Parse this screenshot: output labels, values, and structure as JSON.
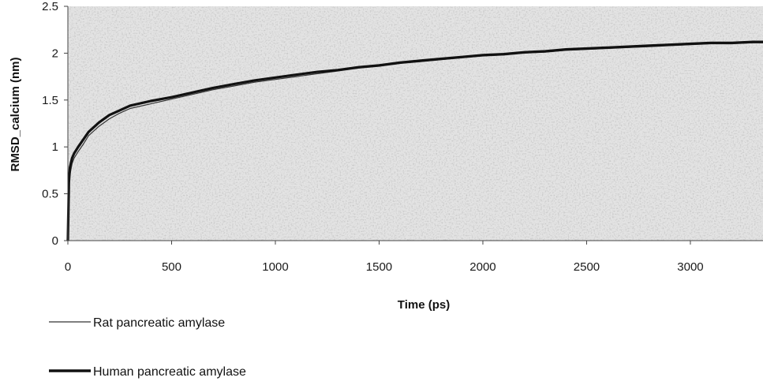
{
  "chart_data": {
    "type": "line",
    "title": "",
    "xlabel": "Time (ps)",
    "ylabel": "RMSD_calcium (nm)",
    "xlim": [
      0,
      3350
    ],
    "ylim": [
      0,
      2.5
    ],
    "x_ticks": [
      0,
      500,
      1000,
      1500,
      2000,
      2500,
      3000
    ],
    "y_ticks": [
      0,
      0.5,
      1,
      1.5,
      2,
      2.5
    ],
    "y_tick_labels": [
      "0",
      "0.5",
      "1",
      "1.5",
      "2",
      "2.5"
    ],
    "grid": false,
    "legend_position": "bottom-left",
    "series": [
      {
        "name": "Rat pancreatic amylase",
        "color": "#333333",
        "x": [
          0,
          5,
          10,
          20,
          30,
          50,
          75,
          100,
          150,
          200,
          250,
          300,
          400,
          500,
          600,
          700,
          800,
          900,
          1000,
          1100,
          1200,
          1300,
          1400,
          1500,
          1600,
          1700,
          1800,
          1900,
          2000,
          2100,
          2200,
          2300,
          2400,
          2500,
          2600,
          2700,
          2800,
          2900,
          3000,
          3100,
          3200,
          3300,
          3350
        ],
        "y": [
          0,
          0.55,
          0.7,
          0.82,
          0.88,
          0.95,
          1.03,
          1.12,
          1.22,
          1.3,
          1.36,
          1.41,
          1.46,
          1.51,
          1.56,
          1.61,
          1.65,
          1.69,
          1.72,
          1.75,
          1.78,
          1.81,
          1.84,
          1.86,
          1.89,
          1.91,
          1.93,
          1.95,
          1.97,
          1.98,
          2.0,
          2.01,
          2.03,
          2.04,
          2.05,
          2.06,
          2.07,
          2.08,
          2.09,
          2.1,
          2.1,
          2.11,
          2.11
        ]
      },
      {
        "name": "Human pancreatic amylase",
        "color": "#111111",
        "x": [
          0,
          5,
          10,
          20,
          30,
          50,
          75,
          100,
          150,
          200,
          250,
          300,
          400,
          500,
          600,
          700,
          800,
          900,
          1000,
          1100,
          1200,
          1300,
          1400,
          1500,
          1600,
          1700,
          1800,
          1900,
          2000,
          2100,
          2200,
          2300,
          2400,
          2500,
          2600,
          2700,
          2800,
          2900,
          3000,
          3100,
          3200,
          3300,
          3350
        ],
        "y": [
          0,
          0.62,
          0.78,
          0.88,
          0.93,
          1.0,
          1.08,
          1.16,
          1.26,
          1.34,
          1.39,
          1.44,
          1.49,
          1.53,
          1.58,
          1.63,
          1.67,
          1.71,
          1.74,
          1.77,
          1.8,
          1.82,
          1.85,
          1.87,
          1.9,
          1.92,
          1.94,
          1.96,
          1.98,
          1.99,
          2.01,
          2.02,
          2.04,
          2.05,
          2.06,
          2.07,
          2.08,
          2.09,
          2.1,
          2.11,
          2.11,
          2.12,
          2.12
        ]
      }
    ]
  }
}
